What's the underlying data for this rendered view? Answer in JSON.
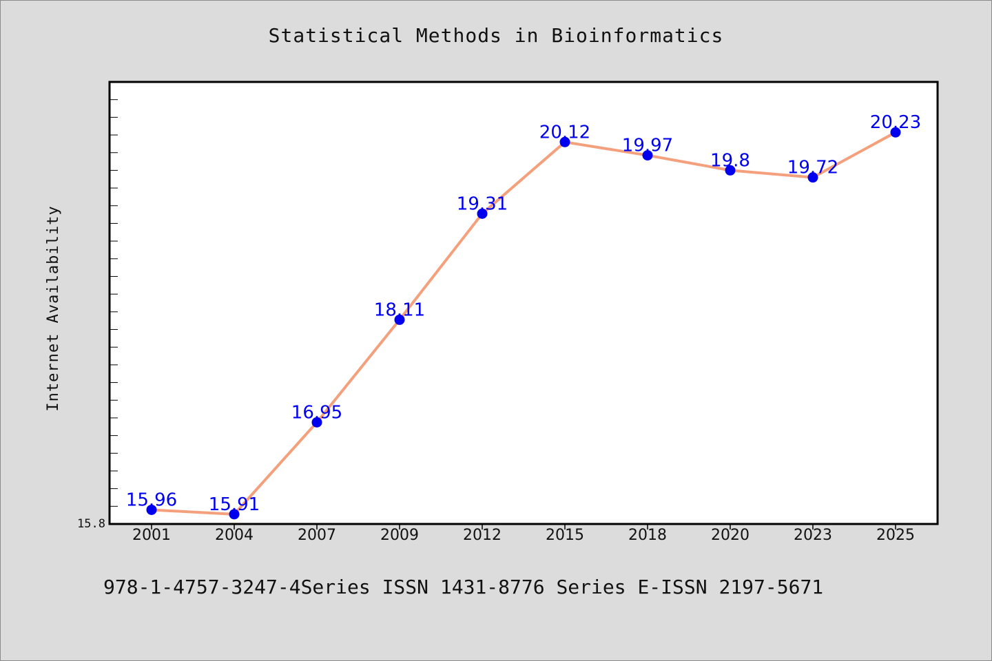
{
  "chart_data": {
    "type": "line",
    "title": "Statistical Methods in Bioinformatics",
    "xlabel": "",
    "ylabel": "Internet Availability",
    "categories": [
      "2001",
      "2004",
      "2007",
      "2009",
      "2012",
      "2015",
      "2018",
      "2020",
      "2023",
      "2025"
    ],
    "series": [
      {
        "values": [
          15.96,
          15.91,
          16.95,
          18.11,
          19.31,
          20.12,
          19.97,
          19.8,
          19.72,
          20.23
        ],
        "labels": [
          "15.96",
          "15.91",
          "16.95",
          "18.11",
          "19.31",
          "20.12",
          "19.97",
          "19.8",
          "19.72",
          "20.23"
        ]
      }
    ],
    "ylim": [
      15.8,
      20.8
    ],
    "y_tick_label": "15.8",
    "grid": false,
    "colors": {
      "line": "#f4a07c",
      "marker": "#0000ee",
      "data_label": "#0000ee",
      "plot_background": "#ffffff",
      "figure_background": "#dcdcdc"
    }
  },
  "footer": {
    "text": "978-1-4757-3247-4Series ISSN 1431-8776 Series E-ISSN 2197-5671"
  }
}
